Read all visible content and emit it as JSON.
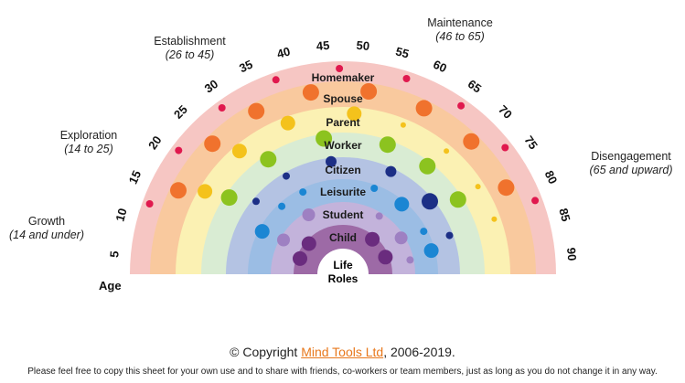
{
  "stages": [
    {
      "name": "Growth",
      "range": "(14 and under)"
    },
    {
      "name": "Exploration",
      "range": "(14 to 25)"
    },
    {
      "name": "Establishment",
      "range": "(26 to 45)"
    },
    {
      "name": "Maintenance",
      "range": "(46 to 65)"
    },
    {
      "name": "Disengagement",
      "range": "(65 and upward)"
    }
  ],
  "age_title": "Age",
  "age_ticks": [
    "5",
    "10",
    "15",
    "20",
    "25",
    "30",
    "35",
    "40",
    "45",
    "50",
    "55",
    "60",
    "65",
    "70",
    "75",
    "80",
    "85",
    "90"
  ],
  "roles": [
    "Homemaker",
    "Spouse",
    "Parent",
    "Worker",
    "Citizen",
    "Leisurite",
    "Student",
    "Child"
  ],
  "center_label": [
    "Life",
    "Roles"
  ],
  "band_colors": [
    "#f6c6c3",
    "#f9c99e",
    "#fbf1b3",
    "#d9ecd3",
    "#b4c3e3",
    "#9bbde4",
    "#c3b3db",
    "#9d6aa6"
  ],
  "dot_colors": [
    "#e0194e",
    "#f0722d",
    "#f4c21c",
    "#8cc31f",
    "#1c2f86",
    "#1b86d3",
    "#9e80c2",
    "#6a2c7e"
  ],
  "copyright": {
    "prefix": "© Copyright ",
    "link": "Mind Tools Ltd",
    "suffix": ", 2006-2019."
  },
  "notice": "Please feel free to copy this sheet for your own use and to share with friends, co-workers or team members, just as long as you do not change it in any way."
}
